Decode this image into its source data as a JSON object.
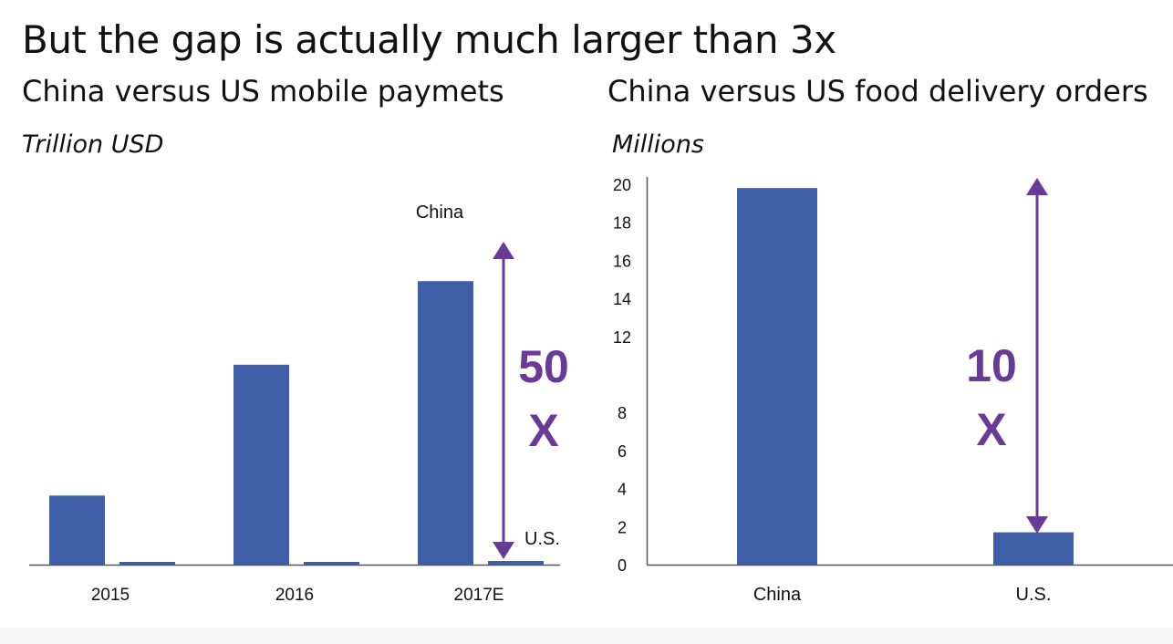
{
  "headline": "But the gap is actually much larger than 3x",
  "colors": {
    "bar": "#3f5fa8",
    "arrow": "#6a3a98",
    "axis": "#555555",
    "text": "#111111"
  },
  "chart_data": [
    {
      "type": "bar",
      "title": "China versus US mobile paymets",
      "unit_label": "Trillion USD",
      "categories": [
        "2015",
        "2016",
        "2017E"
      ],
      "series": [
        {
          "name": "China",
          "values": [
            1.9,
            5.5,
            7.8
          ]
        },
        {
          "name": "U.S.",
          "values": [
            0.05,
            0.06,
            0.1
          ]
        }
      ],
      "ylim": [
        0,
        9.06
      ],
      "labels": {
        "china": "China",
        "us": "U.S."
      },
      "annotation": {
        "line1": "50",
        "line2": "X"
      }
    },
    {
      "type": "bar",
      "title": "China versus US food delivery orders",
      "unit_label": "Millions",
      "categories": [
        "China",
        "U.S."
      ],
      "values": [
        19.8,
        1.7
      ],
      "ylim": [
        0,
        20
      ],
      "yticks": [
        "0",
        "2",
        "4",
        "6",
        "8",
        "12",
        "14",
        "16",
        "18",
        "20"
      ],
      "annotation": {
        "line1": "10",
        "line2": "X"
      }
    }
  ]
}
